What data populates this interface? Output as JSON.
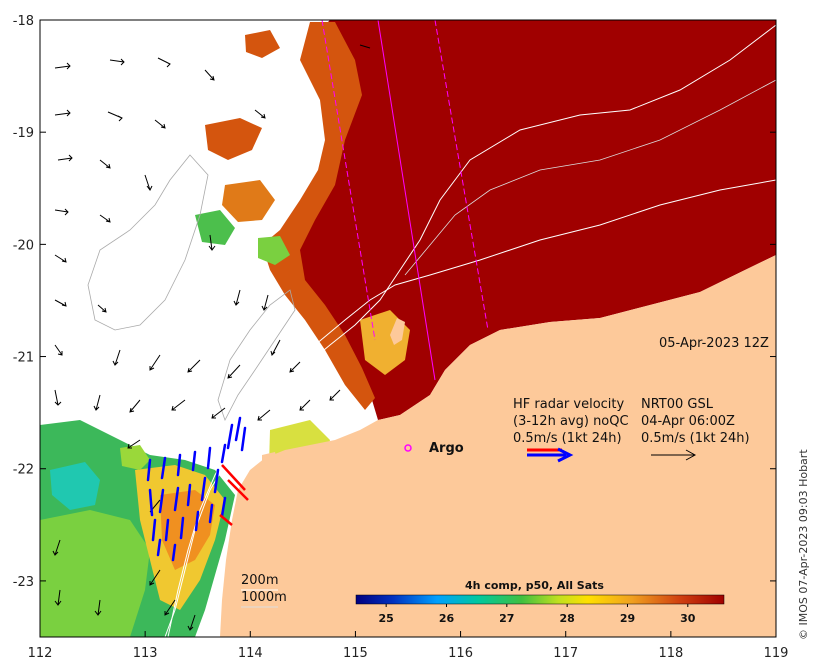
{
  "map": {
    "lon_range": [
      112,
      119
    ],
    "lat_range": [
      -23.5,
      -18
    ],
    "x_ticks": [
      "112",
      "113",
      "114",
      "115",
      "116",
      "117",
      "118",
      "119"
    ],
    "x_tick_values": [
      112,
      113,
      114,
      115,
      116,
      117,
      118,
      119
    ],
    "y_ticks": [
      "-18",
      "-19",
      "-20",
      "-21",
      "-22",
      "-23"
    ],
    "y_tick_values": [
      -18,
      -19,
      -20,
      -21,
      -22,
      -23
    ],
    "colors": {
      "land": "#fdc99a",
      "sst_hot": "#a00000",
      "sst_warm": "#d4550e",
      "sst_mid": "#f0a020",
      "sst_cool": "#4cbf4c",
      "radar_arrow": "#0000ff",
      "argo": "#ff00ff",
      "track": "#ff00ff"
    }
  },
  "annotations": {
    "date": "05-Apr-2023 12Z",
    "hf_line1": "HF radar velocity",
    "hf_line2": "(3-12h avg) noQC",
    "hf_line3": "0.5m/s (1kt 24h)",
    "nrt_line1": "NRT00 GSL",
    "nrt_line2": "04-Apr 06:00Z",
    "nrt_line3": "0.5m/s (1kt 24h)",
    "argo": "Argo",
    "contour_200": "200m",
    "contour_1000": "1000m",
    "credit": "© IMOS 07-Apr-2023 09:03 Hobart"
  },
  "colorbar": {
    "title": "4h comp, p50, All Sats",
    "ticks": [
      "25",
      "26",
      "27",
      "28",
      "29",
      "30"
    ],
    "tick_values": [
      25,
      26,
      27,
      28,
      29,
      30
    ],
    "range": [
      24.5,
      30.6
    ]
  }
}
